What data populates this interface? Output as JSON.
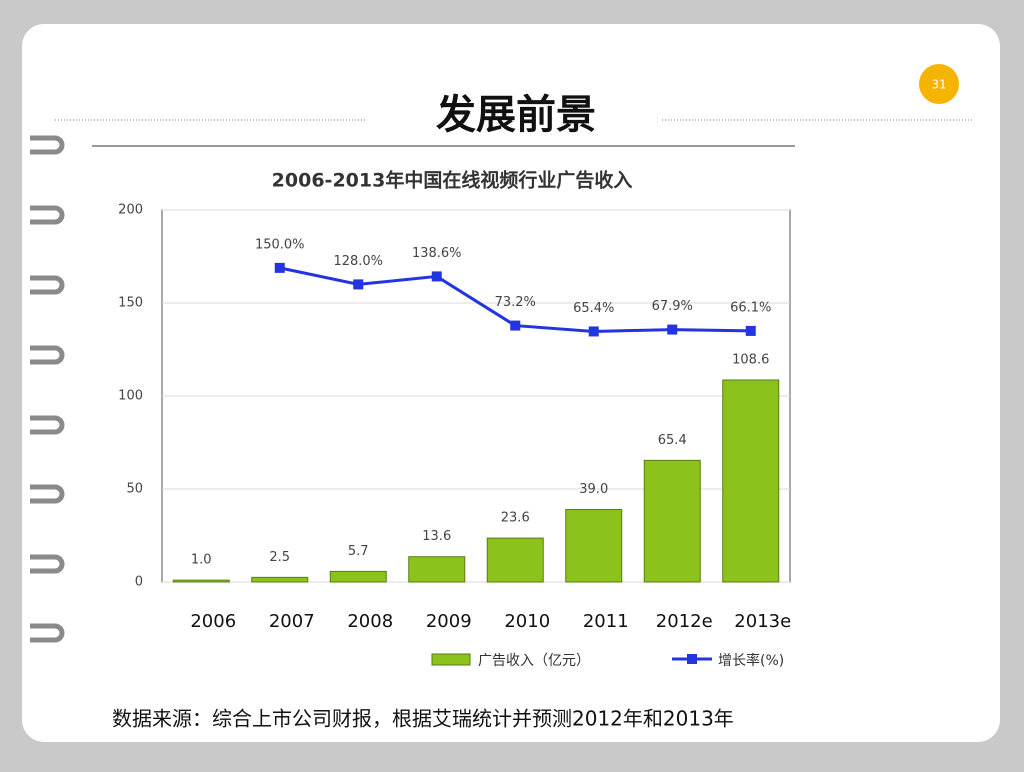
{
  "slide": {
    "title": "发展前景",
    "page_number": "31",
    "source": "数据来源：综合上市公司财报，根据艾瑞统计并预测2012年和2013年"
  },
  "chart_data": {
    "type": "bar",
    "title": "2006-2013年中国在线视频行业广告收入",
    "categories": [
      "2006",
      "2007",
      "2008",
      "2009",
      "2010",
      "2011",
      "2012e",
      "2013e"
    ],
    "ylim": [
      0,
      200
    ],
    "yticks": [
      0,
      50,
      100,
      150,
      200
    ],
    "grid": true,
    "y2lim": [
      -268,
      227
    ],
    "series": [
      {
        "name": "广告收入（亿元）",
        "color": "#8cc21c",
        "values": [
          1.0,
          2.5,
          5.7,
          13.6,
          23.6,
          39.0,
          65.4,
          108.6
        ],
        "value_labels": [
          "1.0",
          "2.5",
          "5.7",
          "13.6",
          "23.6",
          "39.0",
          "65.4",
          "108.6"
        ]
      },
      {
        "name": "增长率(%)",
        "type": "line",
        "axis": "y2",
        "color": "#2235e0",
        "values": [
          null,
          150.0,
          128.0,
          138.6,
          73.2,
          65.4,
          67.9,
          66.1
        ],
        "value_labels": [
          null,
          "150.0%",
          "128.0%",
          "138.6%",
          "73.2%",
          "65.4%",
          "67.9%",
          "66.1%"
        ]
      }
    ]
  }
}
